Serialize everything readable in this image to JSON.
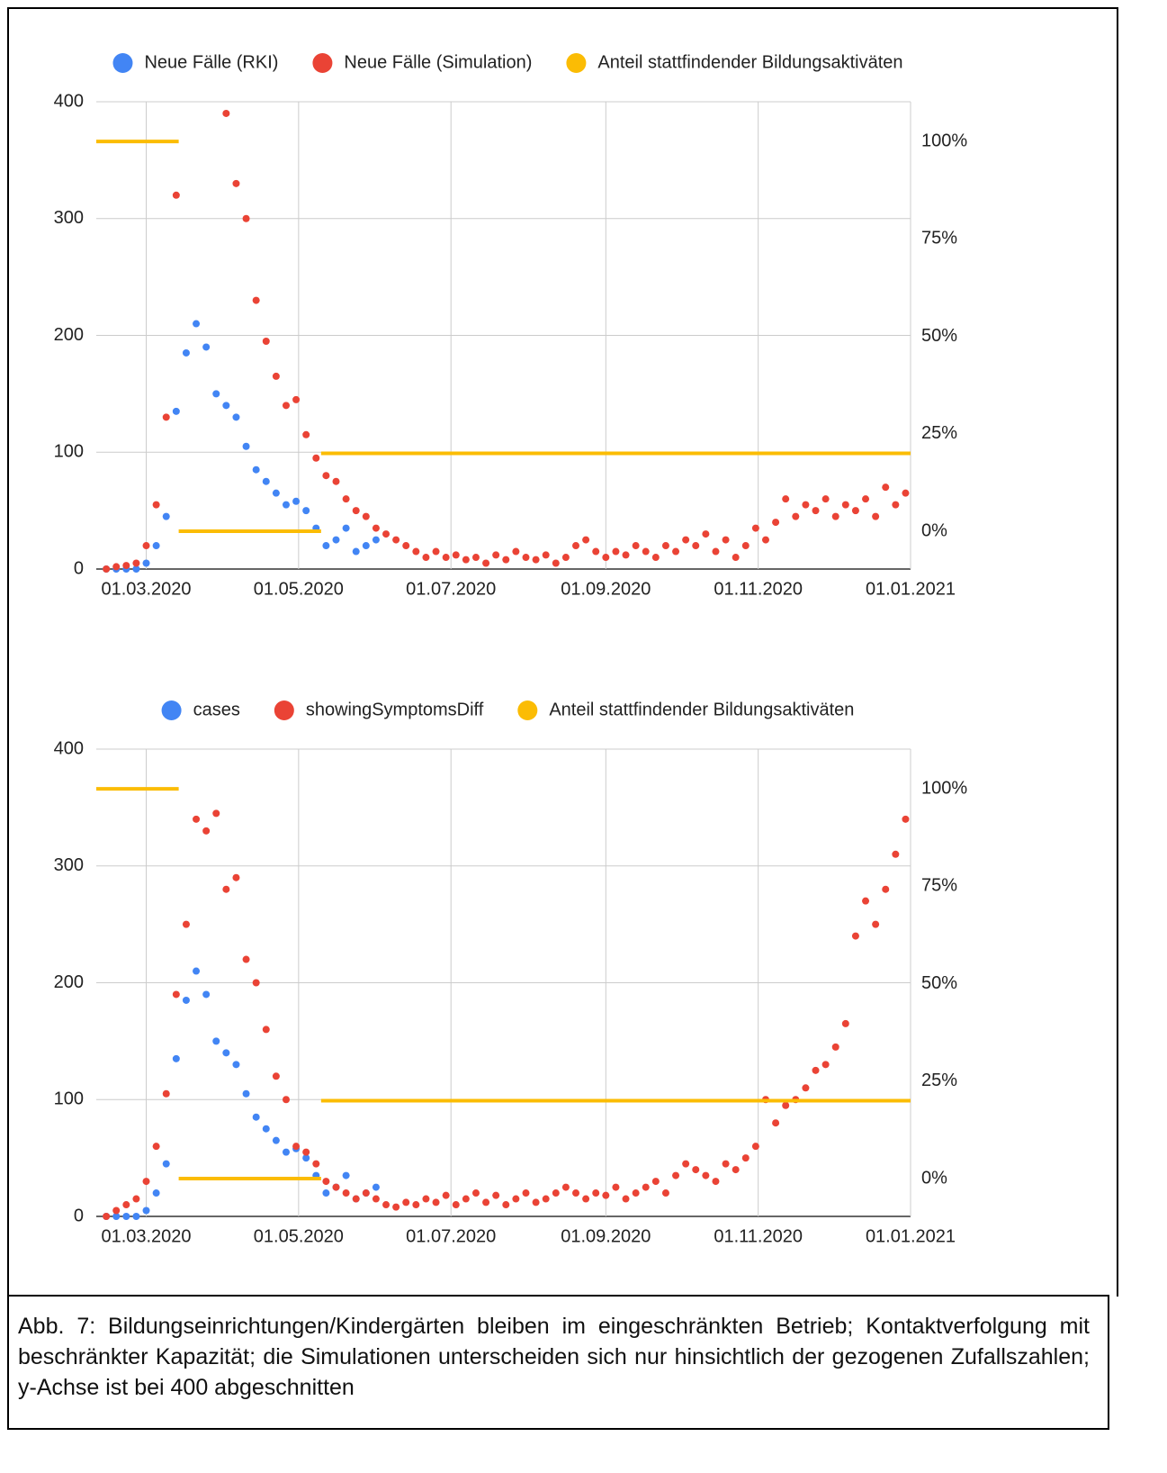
{
  "chart_data": [
    {
      "type": "scatter",
      "x": [
        "14.02.2020",
        "18.02.2020",
        "22.02.2020",
        "26.02.2020",
        "01.03.2020",
        "05.03.2020",
        "09.03.2020",
        "13.03.2020",
        "17.03.2020",
        "21.03.2020",
        "25.03.2020",
        "29.03.2020",
        "02.04.2020",
        "06.04.2020",
        "10.04.2020",
        "14.04.2020",
        "18.04.2020",
        "22.04.2020",
        "26.04.2020",
        "30.04.2020",
        "04.05.2020",
        "08.05.2020",
        "12.05.2020",
        "16.05.2020",
        "20.05.2020",
        "24.05.2020",
        "28.05.2020",
        "01.06.2020",
        "05.06.2020",
        "09.06.2020",
        "13.06.2020",
        "17.06.2020",
        "21.06.2020",
        "25.06.2020",
        "29.06.2020",
        "03.07.2020",
        "07.07.2020",
        "11.07.2020",
        "15.07.2020",
        "19.07.2020",
        "23.07.2020",
        "27.07.2020",
        "31.07.2020",
        "04.08.2020",
        "08.08.2020",
        "12.08.2020",
        "16.08.2020",
        "20.08.2020",
        "24.08.2020",
        "28.08.2020",
        "01.09.2020",
        "05.09.2020",
        "09.09.2020",
        "13.09.2020",
        "17.09.2020",
        "21.09.2020",
        "25.09.2020",
        "29.09.2020",
        "03.10.2020",
        "07.10.2020",
        "11.10.2020",
        "15.10.2020",
        "19.10.2020",
        "23.10.2020",
        "27.10.2020",
        "31.10.2020",
        "04.11.2020",
        "08.11.2020",
        "12.11.2020",
        "16.11.2020",
        "20.11.2020",
        "24.11.2020",
        "28.11.2020",
        "02.12.2020",
        "06.12.2020",
        "10.12.2020",
        "14.12.2020",
        "18.12.2020",
        "22.12.2020",
        "26.12.2020",
        "30.12.2020"
      ],
      "series": [
        {
          "name": "Neue Fälle (RKI)",
          "color": "#4285f4",
          "values": [
            0,
            0,
            0,
            0,
            5,
            20,
            45,
            135,
            185,
            210,
            190,
            150,
            140,
            130,
            105,
            85,
            75,
            65,
            55,
            58,
            50,
            35,
            20,
            25,
            35,
            15,
            20,
            25,
            null,
            null,
            null,
            null,
            null,
            null,
            null,
            null,
            null,
            null,
            null,
            null,
            null,
            null,
            null,
            null,
            null,
            null,
            null,
            null,
            null,
            null,
            null,
            null,
            null,
            null,
            null,
            null,
            null,
            null,
            null,
            null,
            null,
            null,
            null,
            null,
            null,
            null,
            null,
            null,
            null,
            null,
            null,
            null,
            null,
            null,
            null,
            null,
            null,
            null,
            null,
            null,
            null
          ]
        },
        {
          "name": "Neue Fälle (Simulation)",
          "color": "#ea4335",
          "values": [
            0,
            2,
            3,
            5,
            20,
            55,
            130,
            320,
            null,
            null,
            null,
            null,
            390,
            330,
            300,
            230,
            195,
            165,
            140,
            145,
            115,
            95,
            80,
            75,
            60,
            50,
            45,
            35,
            30,
            25,
            20,
            15,
            10,
            15,
            10,
            12,
            8,
            10,
            5,
            12,
            8,
            15,
            10,
            8,
            12,
            5,
            10,
            20,
            25,
            15,
            10,
            15,
            12,
            20,
            15,
            10,
            20,
            15,
            25,
            20,
            30,
            15,
            25,
            10,
            20,
            35,
            25,
            40,
            60,
            45,
            55,
            50,
            60,
            45,
            55,
            50,
            60,
            45,
            70,
            55,
            65
          ]
        },
        {
          "name": "Anteil stattfindender Bildungsaktiväten",
          "color": "#fbbc04",
          "axis": "y2",
          "line": true,
          "x": [
            "10.02.2020",
            "14.03.2020",
            "14.03.2020",
            "14.03.2020",
            "10.05.2020",
            "10.05.2020",
            "10.05.2020",
            "01.01.2021"
          ],
          "values": [
            100,
            100,
            null,
            0,
            0,
            null,
            20,
            20
          ]
        }
      ],
      "xlim": [
        "10.02.2020",
        "01.01.2021"
      ],
      "xticks": [
        "01.03.2020",
        "01.05.2020",
        "01.07.2020",
        "01.09.2020",
        "01.11.2020",
        "01.01.2021"
      ],
      "ylim": [
        0,
        400
      ],
      "yticks": [
        0,
        100,
        200,
        300,
        400
      ],
      "y2lim": [
        -9.7,
        110.2
      ],
      "y2ticks": [
        {
          "value": 0,
          "label": "0%"
        },
        {
          "value": 25,
          "label": "25%"
        },
        {
          "value": 50,
          "label": "50%"
        },
        {
          "value": 75,
          "label": "75%"
        },
        {
          "value": 100,
          "label": "100%"
        }
      ],
      "grid": true,
      "legend": "top"
    },
    {
      "type": "scatter",
      "x": [
        "14.02.2020",
        "18.02.2020",
        "22.02.2020",
        "26.02.2020",
        "01.03.2020",
        "05.03.2020",
        "09.03.2020",
        "13.03.2020",
        "17.03.2020",
        "21.03.2020",
        "25.03.2020",
        "29.03.2020",
        "02.04.2020",
        "06.04.2020",
        "10.04.2020",
        "14.04.2020",
        "18.04.2020",
        "22.04.2020",
        "26.04.2020",
        "30.04.2020",
        "04.05.2020",
        "08.05.2020",
        "12.05.2020",
        "16.05.2020",
        "20.05.2020",
        "24.05.2020",
        "28.05.2020",
        "01.06.2020",
        "05.06.2020",
        "09.06.2020",
        "13.06.2020",
        "17.06.2020",
        "21.06.2020",
        "25.06.2020",
        "29.06.2020",
        "03.07.2020",
        "07.07.2020",
        "11.07.2020",
        "15.07.2020",
        "19.07.2020",
        "23.07.2020",
        "27.07.2020",
        "31.07.2020",
        "04.08.2020",
        "08.08.2020",
        "12.08.2020",
        "16.08.2020",
        "20.08.2020",
        "24.08.2020",
        "28.08.2020",
        "01.09.2020",
        "05.09.2020",
        "09.09.2020",
        "13.09.2020",
        "17.09.2020",
        "21.09.2020",
        "25.09.2020",
        "29.09.2020",
        "03.10.2020",
        "07.10.2020",
        "11.10.2020",
        "15.10.2020",
        "19.10.2020",
        "23.10.2020",
        "27.10.2020",
        "31.10.2020",
        "04.11.2020",
        "08.11.2020",
        "12.11.2020",
        "16.11.2020",
        "20.11.2020",
        "24.11.2020",
        "28.11.2020",
        "02.12.2020",
        "06.12.2020",
        "10.12.2020",
        "14.12.2020",
        "18.12.2020",
        "22.12.2020",
        "26.12.2020",
        "30.12.2020"
      ],
      "series": [
        {
          "name": "cases",
          "color": "#4285f4",
          "values": [
            0,
            0,
            0,
            0,
            5,
            20,
            45,
            135,
            185,
            210,
            190,
            150,
            140,
            130,
            105,
            85,
            75,
            65,
            55,
            58,
            50,
            35,
            20,
            25,
            35,
            15,
            20,
            25,
            null,
            null,
            null,
            null,
            null,
            null,
            null,
            null,
            null,
            null,
            null,
            null,
            null,
            null,
            null,
            null,
            null,
            null,
            null,
            null,
            null,
            null,
            null,
            null,
            null,
            null,
            null,
            null,
            null,
            null,
            null,
            null,
            null,
            null,
            null,
            null,
            null,
            null,
            null,
            null,
            null,
            null,
            null,
            null,
            null,
            null,
            null,
            null,
            null,
            null,
            null,
            null,
            null
          ]
        },
        {
          "name": "showingSymptomsDiff",
          "color": "#ea4335",
          "values": [
            0,
            5,
            10,
            15,
            30,
            60,
            105,
            190,
            250,
            340,
            330,
            345,
            280,
            290,
            220,
            200,
            160,
            120,
            100,
            60,
            55,
            45,
            30,
            25,
            20,
            15,
            20,
            15,
            10,
            8,
            12,
            10,
            15,
            12,
            18,
            10,
            15,
            20,
            12,
            18,
            10,
            15,
            20,
            12,
            15,
            20,
            25,
            20,
            15,
            20,
            18,
            25,
            15,
            20,
            25,
            30,
            20,
            35,
            45,
            40,
            35,
            30,
            45,
            40,
            50,
            60,
            100,
            80,
            95,
            100,
            110,
            125,
            130,
            145,
            165,
            240,
            270,
            250,
            280,
            310,
            340
          ]
        },
        {
          "name": "Anteil stattfindender Bildungsaktiväten",
          "color": "#fbbc04",
          "axis": "y2",
          "line": true,
          "x": [
            "10.02.2020",
            "14.03.2020",
            "14.03.2020",
            "14.03.2020",
            "10.05.2020",
            "10.05.2020",
            "10.05.2020",
            "01.01.2021"
          ],
          "values": [
            100,
            100,
            null,
            0,
            0,
            null,
            20,
            20
          ]
        }
      ],
      "xlim": [
        "10.02.2020",
        "01.01.2021"
      ],
      "xticks": [
        "01.03.2020",
        "01.05.2020",
        "01.07.2020",
        "01.09.2020",
        "01.11.2020",
        "01.01.2021"
      ],
      "ylim": [
        0,
        400
      ],
      "yticks": [
        0,
        100,
        200,
        300,
        400
      ],
      "y2lim": [
        -9.7,
        110.2
      ],
      "y2ticks": [
        {
          "value": 0,
          "label": "0%"
        },
        {
          "value": 25,
          "label": "25%"
        },
        {
          "value": 50,
          "label": "50%"
        },
        {
          "value": 75,
          "label": "75%"
        },
        {
          "value": 100,
          "label": "100%"
        }
      ],
      "grid": true,
      "legend": "top"
    }
  ],
  "caption": "Abb. 7: Bildungseinrichtungen/Kindergärten bleiben im eingeschränkten Betrieb; Kontaktverfolgung mit beschränkter Kapazität; die Simulationen unterscheiden sich nur hinsichtlich der gezogenen Zufallszahlen; y-Achse ist bei 400 abgeschnitten"
}
